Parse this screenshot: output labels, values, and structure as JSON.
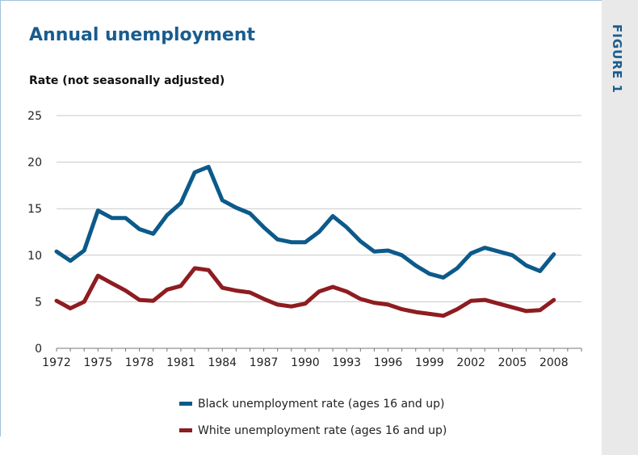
{
  "figure_label": "FIGURE 1",
  "colors": {
    "accent": "#1a5c8e",
    "black_series": "#0c5a8a",
    "white_series": "#8e1c20",
    "grid": "#c8c8c8",
    "side_panel": "#e9e9ea"
  },
  "chart_data": {
    "type": "line",
    "title": "Annual unemployment",
    "ylabel": "Rate (not seasonally adjusted)",
    "xlabel": "",
    "ylim": [
      0,
      25
    ],
    "xlim": [
      1972,
      2010
    ],
    "grid": true,
    "legend_position": "bottom",
    "y_ticks": [
      "0",
      "5",
      "10",
      "15",
      "20",
      "25"
    ],
    "x_ticks": [
      "1972",
      "1975",
      "1978",
      "1981",
      "1984",
      "1987",
      "1990",
      "1993",
      "1996",
      "1999",
      "2002",
      "2005",
      "2008"
    ],
    "x": [
      1972,
      1973,
      1974,
      1975,
      1976,
      1977,
      1978,
      1979,
      1980,
      1981,
      1982,
      1983,
      1984,
      1985,
      1986,
      1987,
      1988,
      1989,
      1990,
      1991,
      1992,
      1993,
      1994,
      1995,
      1996,
      1997,
      1998,
      1999,
      2000,
      2001,
      2002,
      2003,
      2004,
      2005,
      2006,
      2007,
      2008,
      2009
    ],
    "series": [
      {
        "name": "Black unemployment rate (ages 16 and up)",
        "color": "#0c5a8a",
        "values": [
          10.4,
          9.4,
          10.5,
          14.8,
          14.0,
          14.0,
          12.8,
          12.3,
          14.3,
          15.6,
          18.9,
          19.5,
          15.9,
          15.1,
          14.5,
          13.0,
          11.7,
          11.4,
          11.4,
          12.5,
          14.2,
          13.0,
          11.5,
          10.4,
          10.5,
          10.0,
          8.9,
          8.0,
          7.6,
          8.6,
          10.2,
          10.8,
          10.4,
          10.0,
          8.9,
          8.3,
          10.1,
          null
        ]
      },
      {
        "name": "White unemployment rate (ages 16 and up)",
        "color": "#8e1c20",
        "values": [
          5.1,
          4.3,
          5.0,
          7.8,
          7.0,
          6.2,
          5.2,
          5.1,
          6.3,
          6.7,
          8.6,
          8.4,
          6.5,
          6.2,
          6.0,
          5.3,
          4.7,
          4.5,
          4.8,
          6.1,
          6.6,
          6.1,
          5.3,
          4.9,
          4.7,
          4.2,
          3.9,
          3.7,
          3.5,
          4.2,
          5.1,
          5.2,
          4.8,
          4.4,
          4.0,
          4.1,
          5.2,
          null
        ]
      }
    ]
  }
}
